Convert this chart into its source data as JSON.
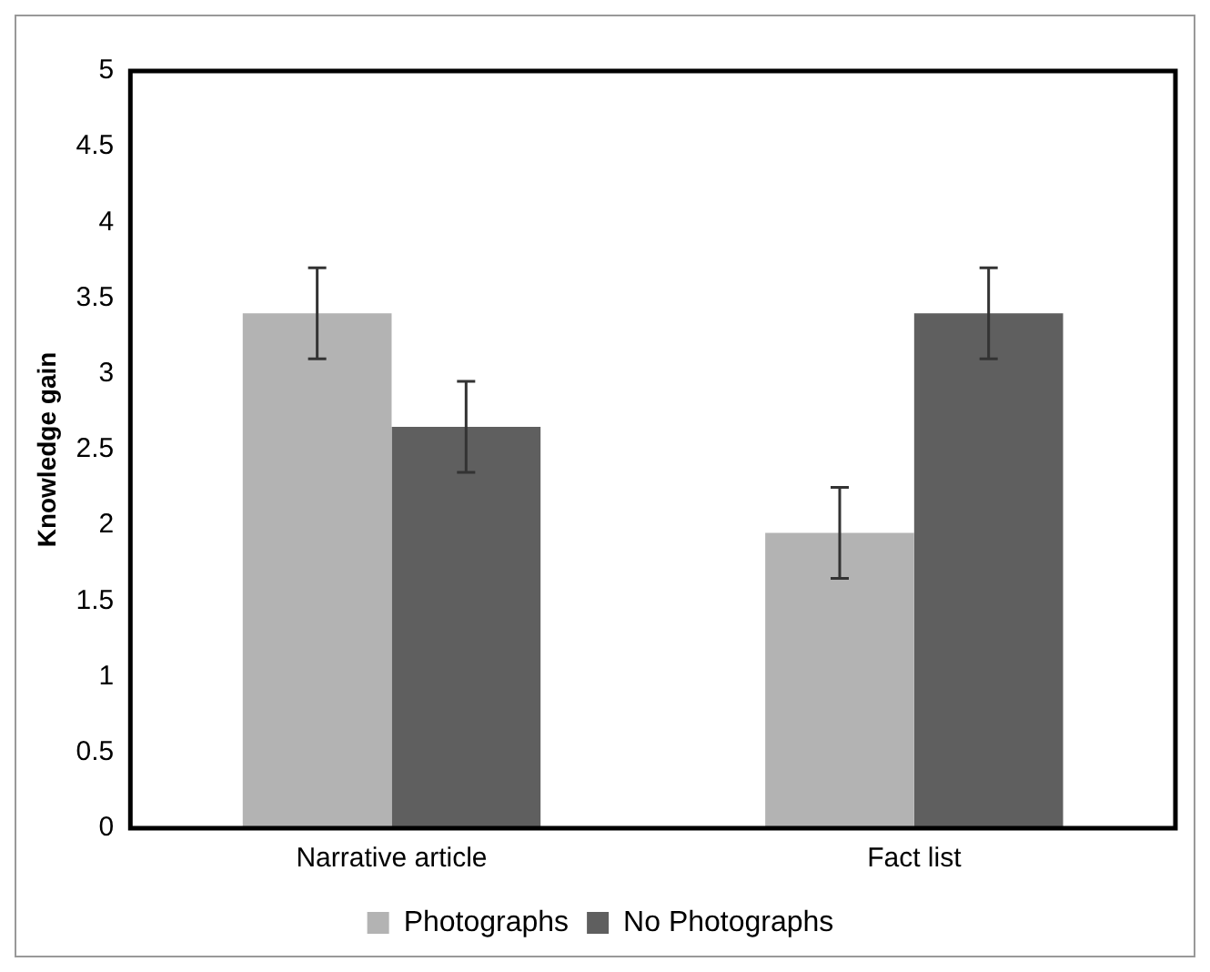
{
  "chart_data": {
    "type": "bar",
    "ylabel": "Knowledge gain",
    "categories": [
      "Narrative article",
      "Fact list"
    ],
    "series": [
      {
        "name": "Photographs",
        "color": "#b3b3b3",
        "values": [
          3.4,
          1.95
        ],
        "errors": [
          0.3,
          0.3
        ]
      },
      {
        "name": "No Photographs",
        "color": "#5f5f5f",
        "values": [
          2.65,
          3.4
        ],
        "errors": [
          0.3,
          0.3
        ]
      }
    ],
    "ylim": [
      0,
      5
    ],
    "yticks": [
      0,
      0.5,
      1,
      1.5,
      2,
      2.5,
      3,
      3.5,
      4,
      4.5,
      5
    ],
    "grid": false,
    "legend": "bottom"
  }
}
